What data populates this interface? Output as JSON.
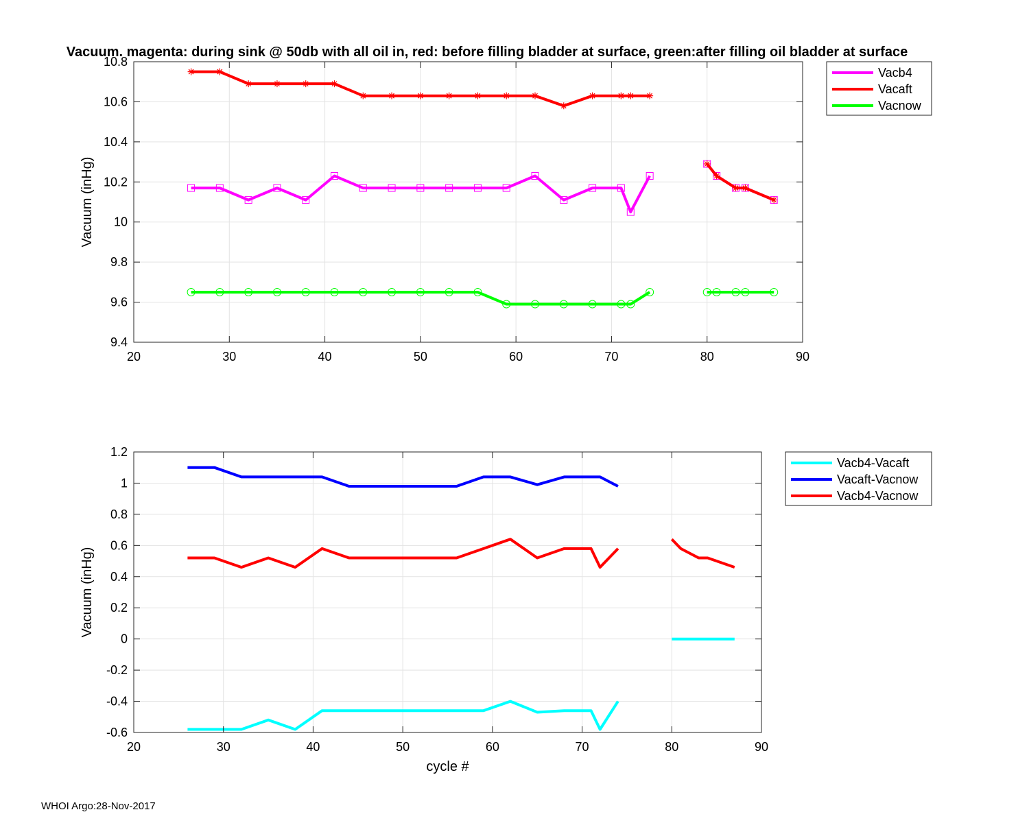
{
  "footer": "WHOI Argo:28-Nov-2017",
  "chart_data": [
    {
      "type": "line",
      "title": "Vacuum. magenta: during sink @ 50db with all oil in, red: before filling bladder at surface, green:after filling oil bladder at surface",
      "xlabel": "",
      "ylabel": "Vacuum (inHg)",
      "xlim": [
        20,
        90
      ],
      "ylim": [
        9.4,
        10.8
      ],
      "xticks": [
        20,
        30,
        40,
        50,
        60,
        70,
        80,
        90
      ],
      "yticks": [
        9.4,
        9.6,
        9.8,
        10,
        10.2,
        10.4,
        10.6,
        10.8
      ],
      "grid": true,
      "legend_position": "outside-top-right",
      "series": [
        {
          "name": "Vacb4",
          "color": "#ff00ff",
          "marker": "square",
          "x": [
            26,
            29,
            32,
            35,
            38,
            41,
            44,
            47,
            50,
            53,
            56,
            59,
            62,
            65,
            68,
            71,
            72,
            74,
            null,
            80,
            81,
            83,
            84,
            87
          ],
          "y": [
            10.17,
            10.17,
            10.11,
            10.17,
            10.11,
            10.23,
            10.17,
            10.17,
            10.17,
            10.17,
            10.17,
            10.17,
            10.23,
            10.11,
            10.17,
            10.17,
            10.05,
            10.23,
            null,
            10.29,
            10.23,
            10.17,
            10.17,
            10.11
          ]
        },
        {
          "name": "Vacaft",
          "color": "#ff0000",
          "marker": "star",
          "x": [
            26,
            29,
            32,
            35,
            38,
            41,
            44,
            47,
            50,
            53,
            56,
            59,
            62,
            65,
            68,
            71,
            72,
            74,
            null,
            80,
            81,
            83,
            84,
            87
          ],
          "y": [
            10.75,
            10.75,
            10.69,
            10.69,
            10.69,
            10.69,
            10.63,
            10.63,
            10.63,
            10.63,
            10.63,
            10.63,
            10.63,
            10.58,
            10.63,
            10.63,
            10.63,
            10.63,
            null,
            10.29,
            10.23,
            10.17,
            10.17,
            10.11
          ]
        },
        {
          "name": "Vacnow",
          "color": "#00ff00",
          "marker": "circle",
          "x": [
            26,
            29,
            32,
            35,
            38,
            41,
            44,
            47,
            50,
            53,
            56,
            59,
            62,
            65,
            68,
            71,
            72,
            74,
            null,
            80,
            81,
            83,
            84,
            87
          ],
          "y": [
            9.65,
            9.65,
            9.65,
            9.65,
            9.65,
            9.65,
            9.65,
            9.65,
            9.65,
            9.65,
            9.65,
            9.59,
            9.59,
            9.59,
            9.59,
            9.59,
            9.59,
            9.65,
            null,
            9.65,
            9.65,
            9.65,
            9.65,
            9.65
          ]
        }
      ]
    },
    {
      "type": "line",
      "title": "",
      "xlabel": "cycle #",
      "ylabel": "Vacuum (inHg)",
      "xlim": [
        20,
        90
      ],
      "ylim": [
        -0.6,
        1.2
      ],
      "xticks": [
        20,
        30,
        40,
        50,
        60,
        70,
        80,
        90
      ],
      "yticks": [
        -0.6,
        -0.4,
        -0.2,
        0,
        0.2,
        0.4,
        0.6,
        0.8,
        1,
        1.2
      ],
      "grid": true,
      "legend_position": "outside-top-right",
      "series": [
        {
          "name": "Vacb4-Vacaft",
          "color": "#00ffff",
          "x": [
            26,
            29,
            32,
            35,
            38,
            41,
            44,
            47,
            50,
            53,
            56,
            59,
            62,
            65,
            68,
            71,
            72,
            74,
            null,
            80,
            81,
            83,
            84,
            87
          ],
          "y": [
            -0.58,
            -0.58,
            -0.58,
            -0.52,
            -0.58,
            -0.46,
            -0.46,
            -0.46,
            -0.46,
            -0.46,
            -0.46,
            -0.46,
            -0.4,
            -0.47,
            -0.46,
            -0.46,
            -0.58,
            -0.4,
            null,
            0,
            0,
            0,
            0,
            0
          ]
        },
        {
          "name": "Vacaft-Vacnow",
          "color": "#0000ff",
          "x": [
            26,
            29,
            32,
            35,
            38,
            41,
            44,
            47,
            50,
            53,
            56,
            59,
            62,
            65,
            68,
            71,
            72,
            74
          ],
          "y": [
            1.1,
            1.1,
            1.04,
            1.04,
            1.04,
            1.04,
            0.98,
            0.98,
            0.98,
            0.98,
            0.98,
            1.04,
            1.04,
            0.99,
            1.04,
            1.04,
            1.04,
            0.98
          ]
        },
        {
          "name": "Vacb4-Vacnow",
          "color": "#ff0000",
          "x": [
            26,
            29,
            32,
            35,
            38,
            41,
            44,
            47,
            50,
            53,
            56,
            59,
            62,
            65,
            68,
            71,
            72,
            74,
            null,
            80,
            81,
            83,
            84,
            87
          ],
          "y": [
            0.52,
            0.52,
            0.46,
            0.52,
            0.46,
            0.58,
            0.52,
            0.52,
            0.52,
            0.52,
            0.52,
            0.58,
            0.64,
            0.52,
            0.58,
            0.58,
            0.46,
            0.58,
            null,
            0.64,
            0.58,
            0.52,
            0.52,
            0.46
          ]
        }
      ]
    }
  ]
}
